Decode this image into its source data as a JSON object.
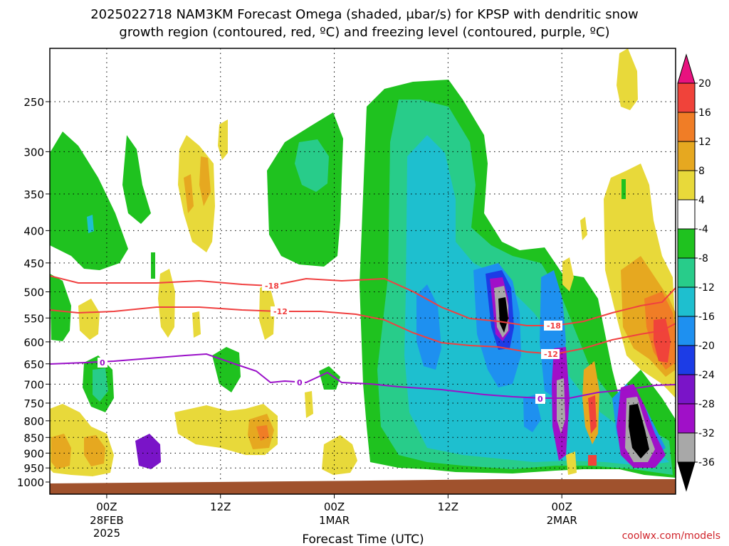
{
  "title": {
    "line1": "2025022718 NAM3KM Forecast Omega (shaded, μbar/s) for KPSP with dendritic snow",
    "line2": "growth region (contoured, red, ºC) and freezing level (contoured, purple, ºC)"
  },
  "credit": "coolwx.com/models",
  "chart_data": {
    "type": "heatmap",
    "title": "2025022718 NAM3KM Forecast Omega (shaded, μbar/s) for KPSP with dendritic snow growth region (contoured, red, ºC) and freezing level (contoured, purple, ºC)",
    "xlabel": "Forecast Time (UTC)",
    "ylabel": "",
    "y_ticks": [
      "250",
      "300",
      "350",
      "400",
      "450",
      "500",
      "550",
      "600",
      "650",
      "700",
      "750",
      "800",
      "850",
      "900",
      "950",
      "1000"
    ],
    "y_values": [
      250,
      300,
      350,
      400,
      450,
      500,
      550,
      600,
      650,
      700,
      750,
      800,
      850,
      900,
      950,
      1000
    ],
    "x_ticks": [
      {
        "label": "00Z",
        "sub1": "28FEB",
        "sub2": "2025",
        "hour": 0
      },
      {
        "label": "12Z",
        "sub1": "",
        "sub2": "",
        "hour": 12
      },
      {
        "label": "00Z",
        "sub1": "1MAR",
        "sub2": "",
        "hour": 24
      },
      {
        "label": "12Z",
        "sub1": "",
        "sub2": "",
        "hour": 36
      },
      {
        "label": "00Z",
        "sub1": "2MAR",
        "sub2": "",
        "hour": 48
      }
    ],
    "x_range_hours": [
      -6,
      60
    ],
    "grid": true,
    "colorbar": {
      "labels": [
        "20",
        "16",
        "12",
        "8",
        "4",
        "-4",
        "-8",
        "-12",
        "-16",
        "-20",
        "-24",
        "-28",
        "-32",
        "-36"
      ],
      "colors": {
        "above_20": "#e8127f",
        "16_20": "#f0433a",
        "12_16": "#f07d26",
        "8_12": "#e6a820",
        "4_8": "#e8d93a",
        "-4_4": "#ffffff",
        "-8_-4": "#1fc21f",
        "-12_-8": "#28cc8a",
        "-16_-12": "#1ebfcf",
        "-20_-16": "#1e90f0",
        "-24_-20": "#1c3ce6",
        "-28_-24": "#7a14c8",
        "-32_-28": "#a010c8",
        "-36_-32": "#a8a8a8",
        "below_-36": "#000000"
      }
    },
    "contours": {
      "dgz": {
        "color": "#f04040",
        "labels": [
          "-18",
          "-12",
          "-18",
          "-12"
        ]
      },
      "freezing": {
        "color": "#9a10c8",
        "labels": [
          "0",
          "0",
          "0"
        ]
      }
    },
    "terrain_color": "#a0522d"
  }
}
